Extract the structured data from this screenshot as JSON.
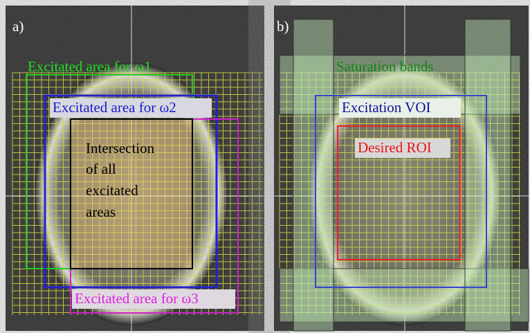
{
  "panels": [
    {
      "label": "a)",
      "annotations": {
        "omega1": "Excitated area for ω1",
        "omega2": "Excitated area for ω2",
        "omega3": "Excitated area for ω3",
        "intersection": [
          "Intersection",
          "of all",
          "excitated",
          "areas"
        ]
      }
    },
    {
      "label": "b)",
      "annotations": {
        "saturation": "Saturation bands",
        "voi": "Excitation VOI",
        "roi": "Desired ROI"
      }
    }
  ]
}
